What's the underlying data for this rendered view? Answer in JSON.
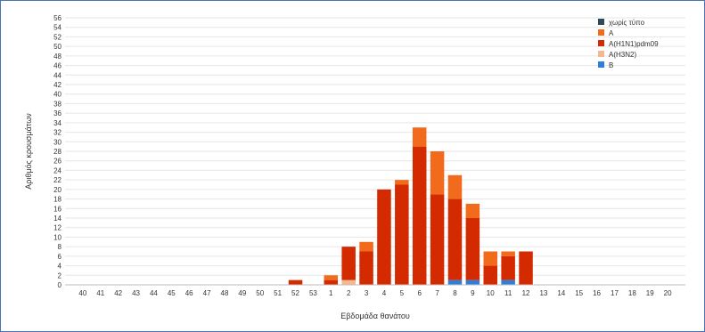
{
  "chart_data": {
    "type": "bar",
    "stacked": true,
    "title": "",
    "xlabel": "Εβδομάδα θανάτου",
    "ylabel": "Αριθμός κρουσμάτων",
    "ylim": [
      0,
      56
    ],
    "ytick_step": 2,
    "grid": true,
    "legend_position": "top-right",
    "categories": [
      "40",
      "41",
      "42",
      "43",
      "44",
      "45",
      "46",
      "47",
      "48",
      "49",
      "50",
      "51",
      "52",
      "53",
      "1",
      "2",
      "3",
      "4",
      "5",
      "6",
      "7",
      "8",
      "9",
      "10",
      "11",
      "12",
      "13",
      "14",
      "15",
      "16",
      "17",
      "18",
      "19",
      "20"
    ],
    "series": [
      {
        "name": "B",
        "color": "#2f7fd8",
        "values": [
          0,
          0,
          0,
          0,
          0,
          0,
          0,
          0,
          0,
          0,
          0,
          0,
          0,
          0,
          0,
          0,
          0,
          0,
          0,
          0,
          0,
          1,
          1,
          0,
          1,
          0,
          0,
          0,
          0,
          0,
          0,
          0,
          0,
          0
        ]
      },
      {
        "name": "A(H3N2)",
        "color": "#f5b78e",
        "values": [
          0,
          0,
          0,
          0,
          0,
          0,
          0,
          0,
          0,
          0,
          0,
          0,
          0,
          0,
          0,
          1,
          0,
          0,
          0,
          0,
          0,
          0,
          0,
          0,
          0,
          0,
          0,
          0,
          0,
          0,
          0,
          0,
          0,
          0
        ]
      },
      {
        "name": "A(H1N1)pdm09",
        "color": "#d42a00",
        "values": [
          0,
          0,
          0,
          0,
          0,
          0,
          0,
          0,
          0,
          0,
          0,
          0,
          1,
          0,
          1,
          7,
          7,
          20,
          21,
          29,
          19,
          17,
          13,
          4,
          5,
          7,
          0,
          0,
          0,
          0,
          0,
          0,
          0,
          0
        ]
      },
      {
        "name": "A",
        "color": "#f26a1b",
        "values": [
          0,
          0,
          0,
          0,
          0,
          0,
          0,
          0,
          0,
          0,
          0,
          0,
          0,
          0,
          1,
          0,
          2,
          0,
          1,
          4,
          9,
          5,
          3,
          3,
          1,
          0,
          0,
          0,
          0,
          0,
          0,
          0,
          0,
          0
        ]
      },
      {
        "name": "χωρίς τύπο",
        "color": "#2b4a5a",
        "values": [
          0,
          0,
          0,
          0,
          0,
          0,
          0,
          0,
          0,
          0,
          0,
          0,
          0,
          0,
          0,
          0,
          0,
          0,
          0,
          0,
          0,
          0,
          0,
          0,
          0,
          0,
          0,
          0,
          0,
          0,
          0,
          0,
          0,
          0
        ]
      }
    ],
    "legend_order": [
      "χωρίς τύπο",
      "A",
      "A(H1N1)pdm09",
      "A(H3N2)",
      "B"
    ]
  }
}
